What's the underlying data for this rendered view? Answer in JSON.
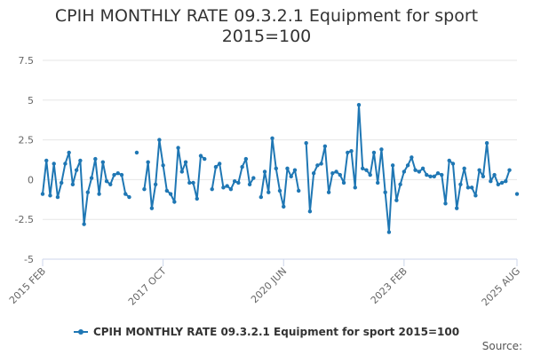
{
  "chart_data": {
    "type": "line",
    "title": "CPIH MONTHLY RATE 09.3.2.1 Equipment for sport",
    "subtitle": "2015=100",
    "xlabel": "",
    "ylabel": "",
    "ylim": [
      -5,
      7.5
    ],
    "yticks": [
      -5,
      -2.5,
      0,
      2.5,
      5,
      7.5
    ],
    "ytick_labels": [
      "-5",
      "-2.5",
      "0",
      "2.5",
      "5",
      "7.5"
    ],
    "xtick_labels": [
      "2015 FEB",
      "2017 OCT",
      "2020 JUN",
      "2023 FEB",
      "2025 AUG"
    ],
    "xtick_indices": [
      0,
      32,
      64,
      96,
      126
    ],
    "grid": true,
    "legend_position": "bottom",
    "series": [
      {
        "name": "CPIH MONTHLY RATE 09.3.2.1 Equipment for sport 2015=100",
        "color": "#1f77b4",
        "start": "2015 FEB",
        "values": [
          -0.9,
          1.2,
          -1.0,
          1.0,
          -1.1,
          -0.2,
          1.0,
          1.7,
          -0.3,
          0.6,
          1.2,
          -2.8,
          -0.8,
          0.1,
          1.3,
          -0.9,
          1.1,
          -0.1,
          -0.3,
          0.3,
          0.4,
          0.3,
          -0.9,
          -1.1,
          null,
          1.7,
          null,
          -0.6,
          1.1,
          -1.8,
          -0.3,
          2.5,
          0.9,
          -0.7,
          -0.9,
          -1.4,
          2.0,
          0.5,
          1.1,
          -0.2,
          -0.2,
          -1.2,
          1.5,
          1.3,
          null,
          -0.6,
          0.8,
          1.0,
          -0.5,
          -0.4,
          -0.6,
          -0.1,
          -0.2,
          0.8,
          1.3,
          -0.3,
          0.1,
          null,
          -1.1,
          0.5,
          -0.8,
          2.6,
          0.7,
          -0.7,
          -1.7,
          0.7,
          0.2,
          0.6,
          -0.7,
          null,
          2.3,
          -2.0,
          0.4,
          0.9,
          1.0,
          2.1,
          -0.8,
          0.4,
          0.5,
          0.3,
          -0.2,
          1.7,
          1.8,
          -0.5,
          4.7,
          0.7,
          0.6,
          0.3,
          1.7,
          -0.2,
          1.9,
          -0.8,
          -3.3,
          0.9,
          -1.3,
          -0.3,
          0.5,
          0.9,
          1.4,
          0.6,
          0.5,
          0.7,
          0.3,
          0.2,
          0.2,
          0.4,
          0.3,
          -1.5,
          1.2,
          1.0,
          -1.8,
          -0.3,
          0.7,
          -0.5,
          -0.5,
          -1.0,
          0.6,
          0.2,
          2.3,
          -0.1,
          0.3,
          -0.3,
          -0.2,
          -0.1,
          0.6,
          null,
          -0.9
        ]
      }
    ]
  },
  "legend": {
    "label": "CPIH MONTHLY RATE 09.3.2.1 Equipment for sport 2015=100"
  },
  "footer": {
    "source": "Source:"
  }
}
